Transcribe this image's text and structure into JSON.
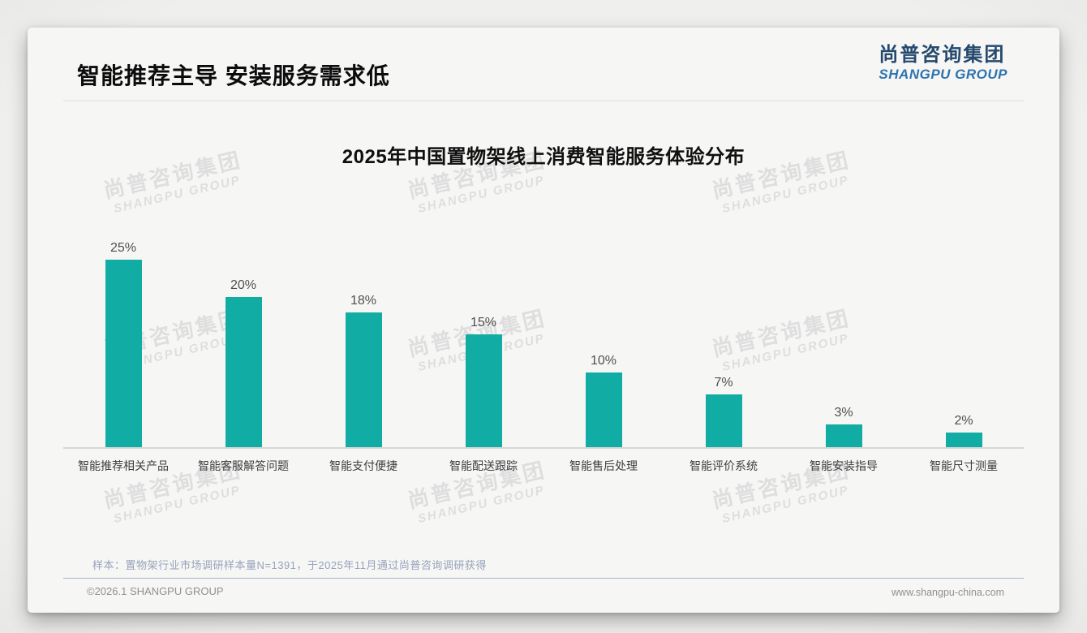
{
  "header": {
    "title": "智能推荐主导 安装服务需求低",
    "logo_cn": "尚普咨询集团",
    "logo_en": "SHANGPU GROUP"
  },
  "chart_data": {
    "type": "bar",
    "title": "2025年中国置物架线上消费智能服务体验分布",
    "categories": [
      "智能推荐相关产品",
      "智能客服解答问题",
      "智能支付便捷",
      "智能配送跟踪",
      "智能售后处理",
      "智能评价系统",
      "智能安装指导",
      "智能尺寸测量"
    ],
    "values": [
      25,
      20,
      18,
      15,
      10,
      7,
      3,
      2
    ],
    "unit": "%",
    "xlabel": "",
    "ylabel": "",
    "ylim": [
      0,
      27
    ],
    "grid": false,
    "legend": "none",
    "data_label_position": "above-bar",
    "bar_color": "#11ACA3"
  },
  "watermark": {
    "line1": "尚普咨询集团",
    "line2": "SHANGPU GROUP"
  },
  "footnote": "样本：置物架行业市场调研样本量N=1391，于2025年11月通过尚普咨询调研获得",
  "footer": {
    "copyright": "©2026.1 SHANGPU GROUP",
    "website": "www.shangpu-china.com"
  },
  "colors": {
    "bar": "#11ACA3",
    "logo_cn": "#264A6E",
    "logo_en": "#2E74AE",
    "value_label": "#4F4F4F",
    "category_label": "#3D3D3D",
    "note": "#96A3BA",
    "footer_text": "#909090"
  }
}
